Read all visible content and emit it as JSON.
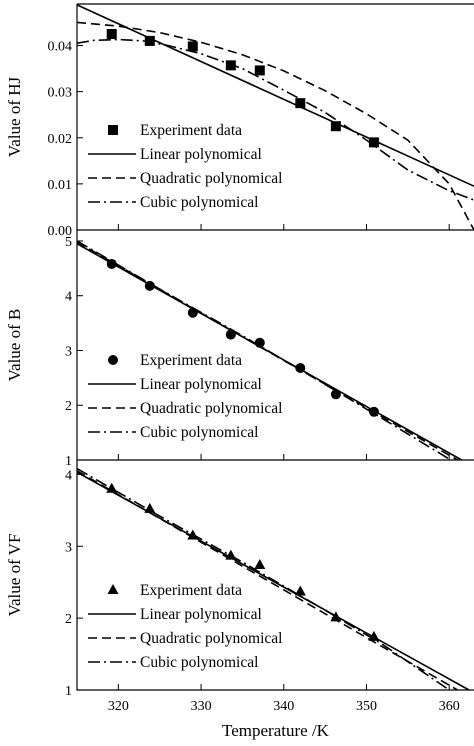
{
  "chart_data": [
    {
      "type": "line",
      "ylabel": "Value of HJ",
      "xlabel": "",
      "xlim": [
        315,
        363
      ],
      "ylim": [
        0.0,
        0.049
      ],
      "yticks": [
        0.0,
        0.01,
        0.02,
        0.03,
        0.04
      ],
      "ytick_labels": [
        "0.00",
        "0.01",
        "0.02",
        "0.03",
        "0.04"
      ],
      "xticks": [
        320,
        330,
        340,
        350,
        360
      ],
      "marker": "square",
      "legend_position": "lower-left",
      "experiment": {
        "name": "Experiment data",
        "x": [
          319.2,
          323.8,
          329.0,
          333.6,
          337.1,
          342.0,
          346.3,
          350.9
        ],
        "y": [
          0.0425,
          0.041,
          0.0398,
          0.0357,
          0.0346,
          0.0275,
          0.0225,
          0.019
        ]
      },
      "fits": [
        {
          "name": "Linear polynomical",
          "style": "solid",
          "x": [
            315,
            363
          ],
          "y": [
            0.0488,
            0.0095
          ]
        },
        {
          "name": "Quadratic polynomical",
          "style": "dashed",
          "x": [
            315,
            320,
            325,
            330,
            335,
            340,
            345,
            350,
            355,
            360,
            363
          ],
          "y": [
            0.045,
            0.0442,
            0.0428,
            0.0407,
            0.038,
            0.0345,
            0.0302,
            0.0252,
            0.0195,
            0.01,
            0.0
          ]
        },
        {
          "name": "Cubic polynomical",
          "style": "dashdot",
          "x": [
            315,
            317,
            320,
            323,
            326,
            330,
            335,
            340,
            345,
            350,
            355,
            360,
            363
          ],
          "y": [
            0.0405,
            0.0411,
            0.0413,
            0.041,
            0.04,
            0.0382,
            0.035,
            0.0303,
            0.0255,
            0.0195,
            0.013,
            0.0085,
            0.0065
          ]
        }
      ]
    },
    {
      "type": "line",
      "ylabel": "Value of B",
      "xlabel": "",
      "xlim": [
        315,
        363
      ],
      "ylim": [
        1,
        5.2
      ],
      "yticks": [
        1,
        2,
        3,
        4,
        5
      ],
      "ytick_labels": [
        "1",
        "2",
        "3",
        "4",
        "5"
      ],
      "xticks": [
        320,
        330,
        340,
        350,
        360
      ],
      "marker": "circle",
      "legend_position": "lower-left",
      "experiment": {
        "name": "Experiment data",
        "x": [
          319.2,
          323.8,
          329.0,
          333.6,
          337.1,
          342.0,
          346.3,
          350.9
        ],
        "y": [
          4.58,
          4.18,
          3.69,
          3.29,
          3.14,
          2.68,
          2.2,
          1.88
        ]
      },
      "fits": [
        {
          "name": "Linear polynomical",
          "style": "solid",
          "x": [
            315,
            361.5
          ],
          "y": [
            4.95,
            1.0
          ]
        },
        {
          "name": "Quadratic polynomical",
          "style": "dashed",
          "x": [
            315,
            361.0
          ],
          "y": [
            4.98,
            1.0
          ]
        },
        {
          "name": "Cubic polynomical",
          "style": "dashdot",
          "x": [
            315,
            325,
            335,
            345,
            352,
            360.2
          ],
          "y": [
            5.0,
            4.12,
            3.27,
            2.38,
            1.75,
            1.0
          ]
        }
      ]
    },
    {
      "type": "line",
      "ylabel": "Value of VF",
      "xlabel": "Temperature /K",
      "xlim": [
        315,
        363
      ],
      "ylim": [
        1,
        4.2
      ],
      "yticks": [
        1,
        2,
        3,
        4
      ],
      "ytick_labels": [
        "1",
        "2",
        "3",
        "4"
      ],
      "xticks": [
        320,
        330,
        340,
        350,
        360
      ],
      "xtick_labels": [
        "320",
        "330",
        "340",
        "350",
        "360"
      ],
      "marker": "triangle",
      "legend_position": "lower-left",
      "experiment": {
        "name": "Experiment data",
        "x": [
          319.2,
          323.8,
          329.0,
          333.6,
          337.1,
          342.0,
          346.3,
          350.9
        ],
        "y": [
          3.8,
          3.52,
          3.15,
          2.87,
          2.74,
          2.37,
          2.01,
          1.74
        ]
      },
      "fits": [
        {
          "name": "Linear polynomical",
          "style": "solid",
          "x": [
            315,
            362.4
          ],
          "y": [
            4.03,
            1.0
          ]
        },
        {
          "name": "Quadratic polynomical",
          "style": "dashed",
          "x": [
            315,
            361.0
          ],
          "y": [
            4.05,
            1.0
          ]
        },
        {
          "name": "Cubic polynomical",
          "style": "dashdot",
          "x": [
            315,
            325,
            335,
            345,
            352,
            360.0
          ],
          "y": [
            4.08,
            3.42,
            2.78,
            2.11,
            1.63,
            1.0
          ]
        }
      ]
    }
  ]
}
